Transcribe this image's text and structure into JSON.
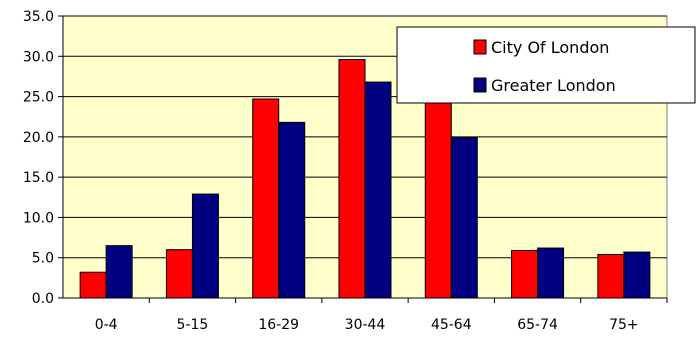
{
  "chart_data": {
    "type": "bar",
    "title": "",
    "xlabel": "",
    "ylabel": "",
    "categories": [
      "0-4",
      "5-15",
      "16-29",
      "30-44",
      "45-64",
      "65-74",
      "75+"
    ],
    "series": [
      {
        "name": "City Of London",
        "color": "#ff0000",
        "values": [
          3.2,
          6.0,
          24.7,
          29.6,
          24.5,
          5.9,
          5.4
        ]
      },
      {
        "name": "Greater London",
        "color": "#000080",
        "values": [
          6.5,
          12.9,
          21.8,
          26.8,
          19.9,
          6.2,
          5.7
        ]
      }
    ],
    "ylim": [
      0,
      35
    ],
    "yticks": [
      "0.0",
      "5.0",
      "10.0",
      "15.0",
      "20.0",
      "25.0",
      "30.0",
      "35.0"
    ],
    "grid": true,
    "plot_background": "#ffffcc",
    "legend_position": "top-right"
  }
}
